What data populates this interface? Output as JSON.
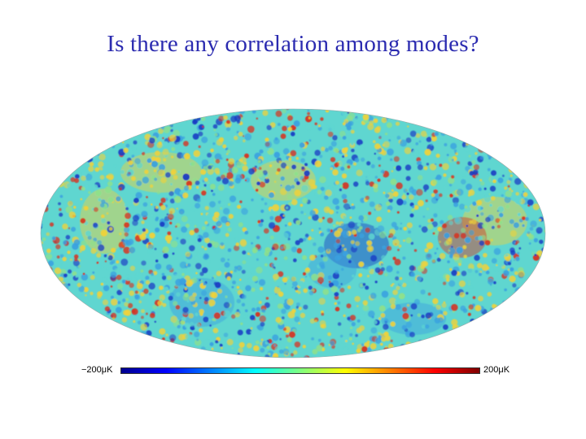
{
  "slide": {
    "title": "Is there any correlation among modes?"
  },
  "map": {
    "projection": "Mollweide",
    "description_colors": {
      "background": "#5fd6d0",
      "cold": "#1a3cc4",
      "cool": "#3aa0e0",
      "warm": "#f0d23a",
      "hot": "#d8311f"
    }
  },
  "colorbar": {
    "min_label": "−200μK",
    "max_label": "200μK",
    "gradient": [
      "#00008f",
      "#0000ff",
      "#0080ff",
      "#00ffff",
      "#80ff80",
      "#ffff00",
      "#ff8000",
      "#ff0000",
      "#800000"
    ]
  }
}
